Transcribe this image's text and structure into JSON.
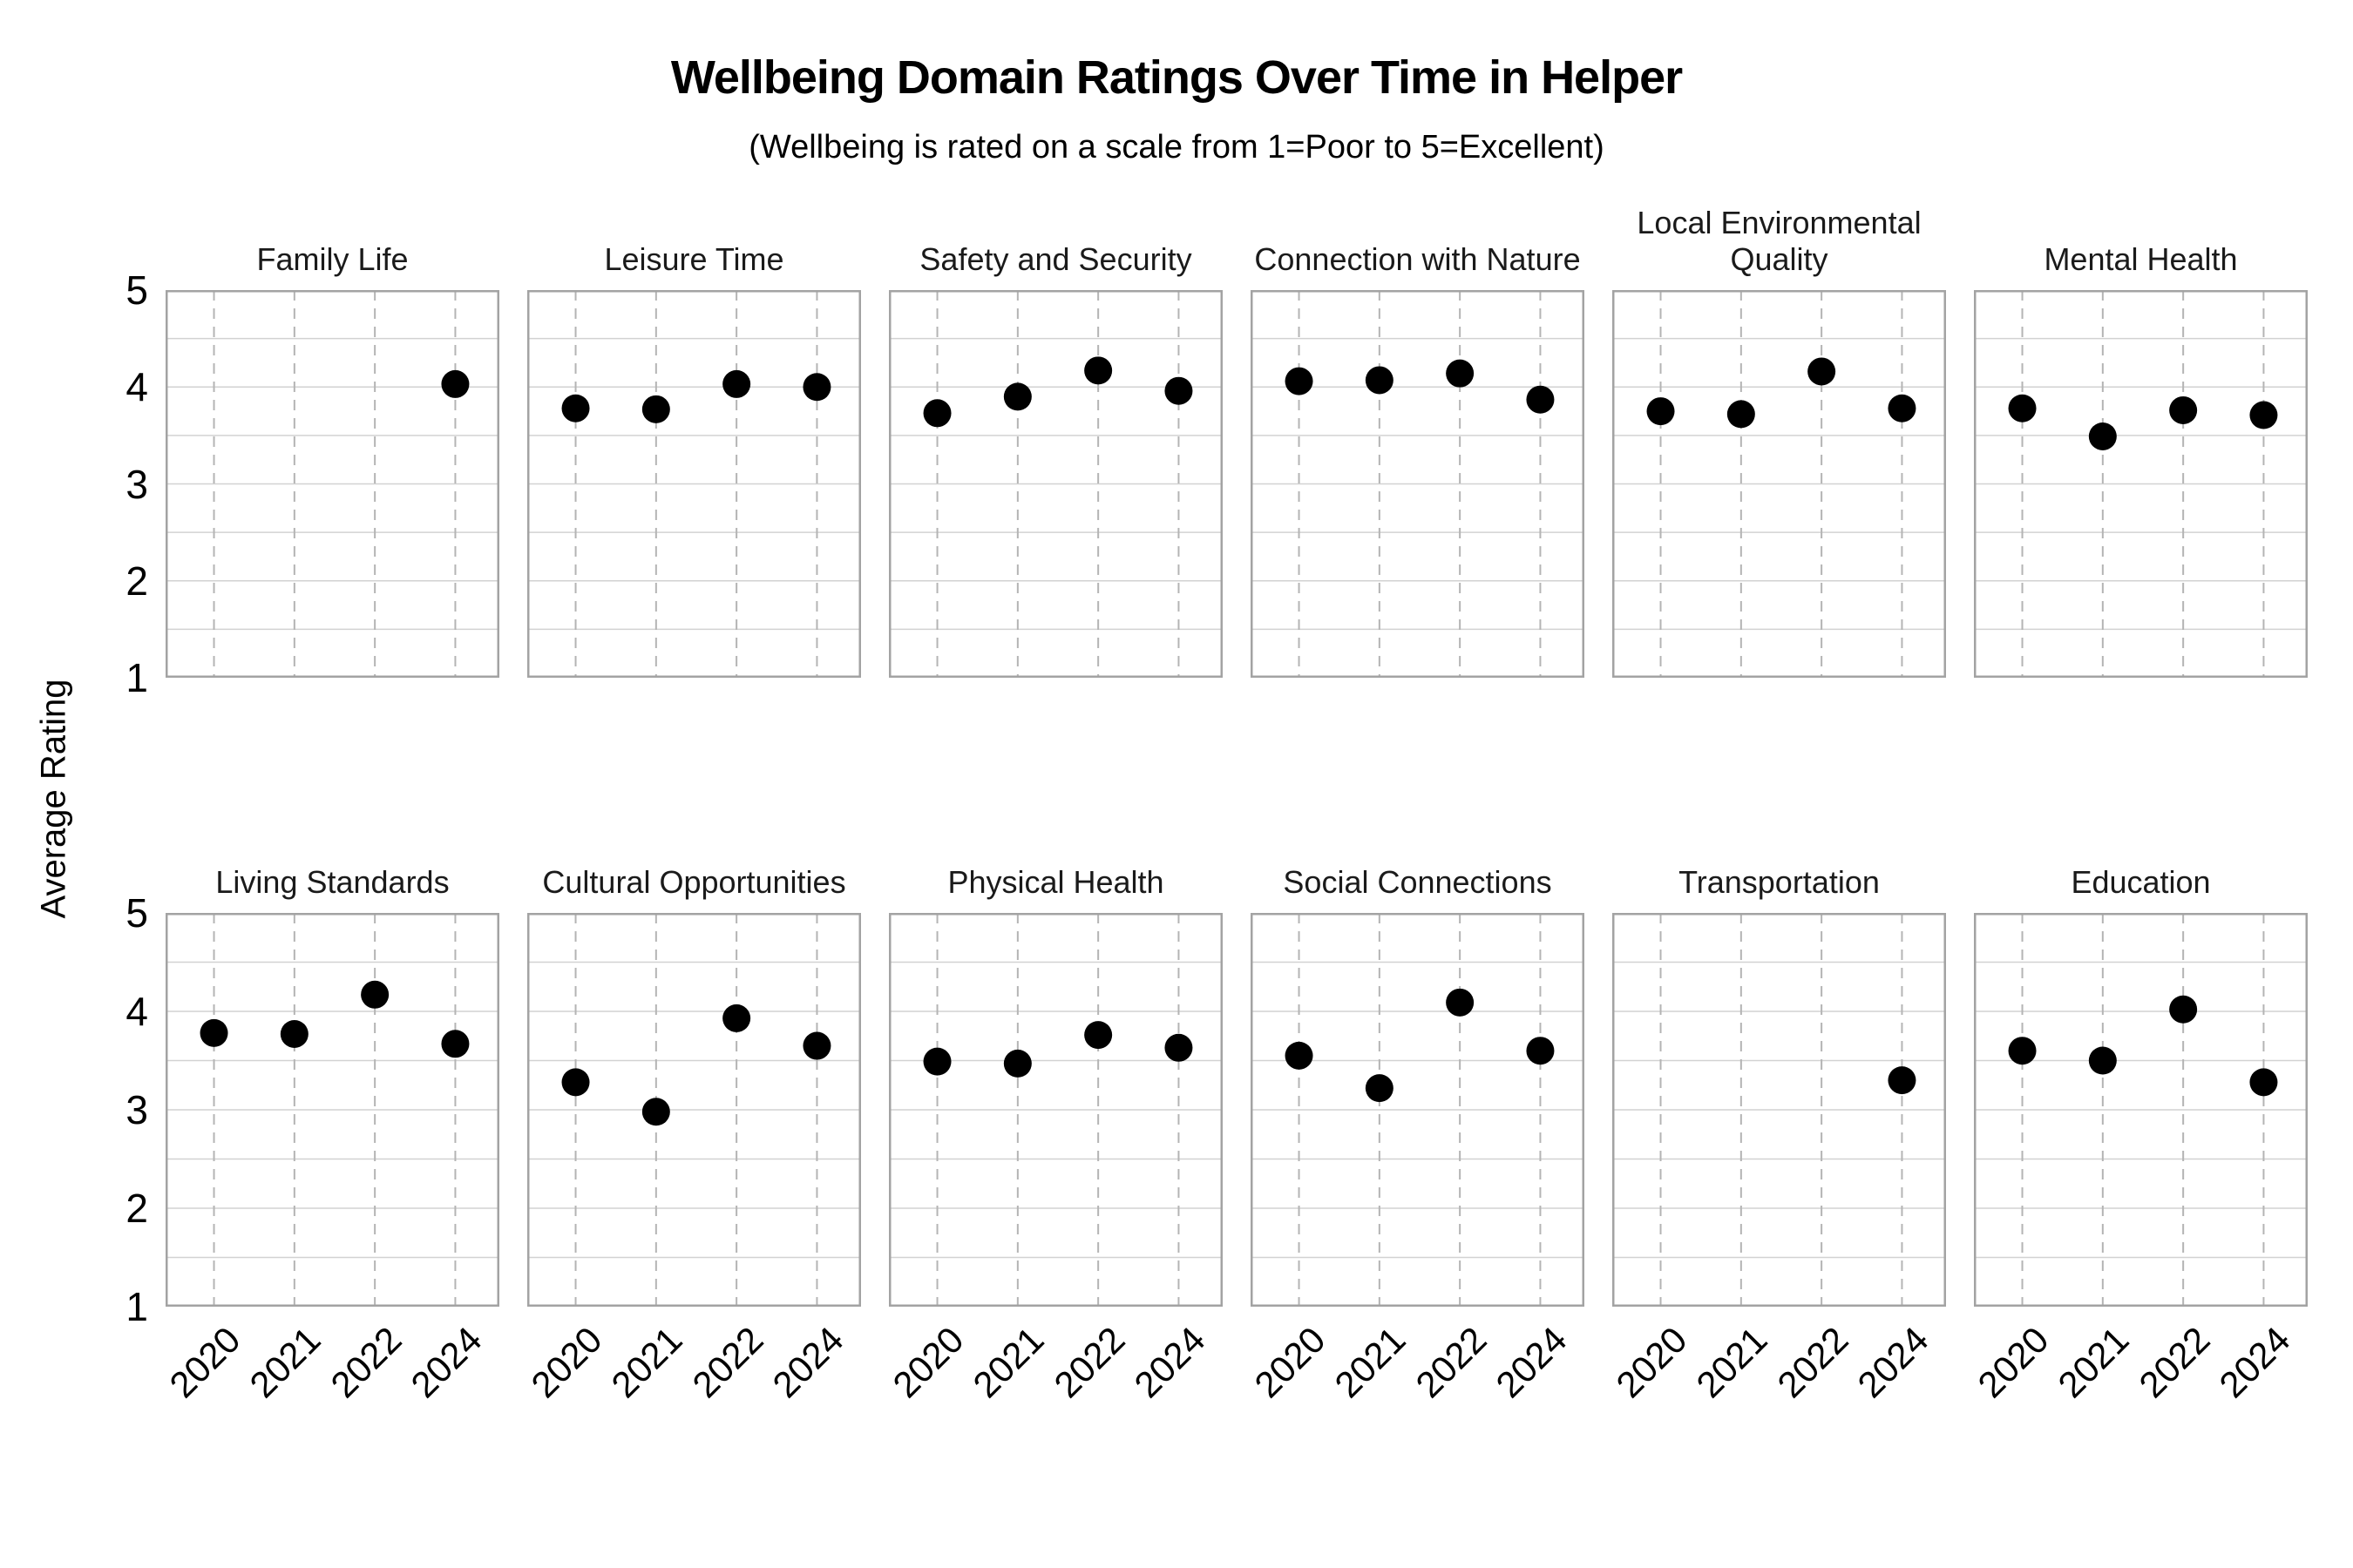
{
  "chart_data": {
    "type": "scatter",
    "title": "Wellbeing Domain Ratings Over Time in Helper",
    "subtitle": "(Wellbeing is rated on a scale from 1=Poor to 5=Excellent)",
    "ylabel": "Average Rating",
    "x_categories": [
      "2020",
      "2021",
      "2022",
      "2024"
    ],
    "ylim": [
      1,
      5
    ],
    "yticks": [
      5,
      4,
      3,
      2,
      1
    ],
    "grid": {
      "horizontal_step": 0.5,
      "horizontal_style": "solid",
      "vertical_style": "dashed-at-categories"
    },
    "legend_position": "none",
    "marker": {
      "shape": "circle",
      "color": "#000000"
    },
    "layout_hint": {
      "rows": 2,
      "cols": 6
    },
    "panels": [
      {
        "name": "Family Life",
        "values": [
          null,
          null,
          null,
          4.03
        ]
      },
      {
        "name": "Leisure Time",
        "values": [
          3.78,
          3.77,
          4.03,
          4.0
        ]
      },
      {
        "name": "Safety and Security",
        "values": [
          3.73,
          3.9,
          4.17,
          3.96
        ]
      },
      {
        "name": "Connection with Nature",
        "values": [
          4.06,
          4.07,
          4.14,
          3.87
        ]
      },
      {
        "name": "Local Environmental Quality",
        "values": [
          3.75,
          3.72,
          4.16,
          3.78
        ]
      },
      {
        "name": "Mental Health",
        "values": [
          3.78,
          3.49,
          3.76,
          3.71
        ]
      },
      {
        "name": "Living Standards",
        "values": [
          3.78,
          3.77,
          4.17,
          3.67
        ]
      },
      {
        "name": "Cultural Opportunities",
        "values": [
          3.28,
          2.98,
          3.93,
          3.65
        ]
      },
      {
        "name": "Physical Health",
        "values": [
          3.49,
          3.47,
          3.76,
          3.63
        ]
      },
      {
        "name": "Social Connections",
        "values": [
          3.55,
          3.22,
          4.09,
          3.6
        ]
      },
      {
        "name": "Transportation",
        "values": [
          null,
          null,
          null,
          3.3
        ]
      },
      {
        "name": "Education",
        "values": [
          3.6,
          3.5,
          4.02,
          3.28
        ]
      }
    ],
    "colors": {
      "point": "#000000",
      "grid_horizontal": "#d2d2d2",
      "grid_vertical_dashed": "#b4b4b4",
      "panel_border": "#a3a3a3",
      "background": "#ffffff"
    }
  }
}
